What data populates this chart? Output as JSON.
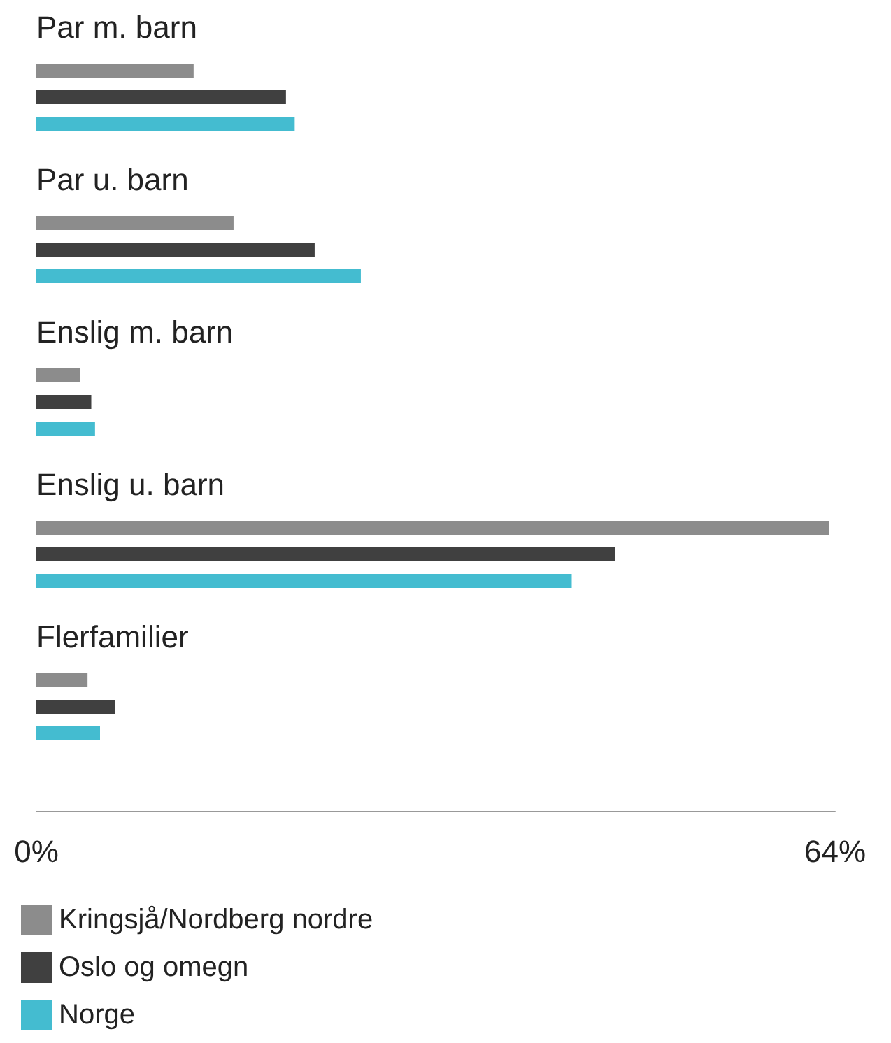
{
  "chart_data": {
    "type": "bar",
    "orientation": "horizontal",
    "categories": [
      "Par m. barn",
      "Par u. barn",
      "Enslig m. barn",
      "Enslig u. barn",
      "Flerfamilier"
    ],
    "series": [
      {
        "name": "Kringsjå/Nordberg nordre",
        "color": "#8c8c8c",
        "values": [
          12.6,
          15.8,
          3.5,
          63.5,
          4.1
        ]
      },
      {
        "name": "Oslo og omegn",
        "color": "#404040",
        "values": [
          20.0,
          22.3,
          4.4,
          46.4,
          6.3
        ]
      },
      {
        "name": "Norge",
        "color": "#44bcd0",
        "values": [
          20.7,
          26.0,
          4.7,
          42.9,
          5.1
        ]
      }
    ],
    "xlim": [
      0,
      64
    ],
    "xticks": [
      {
        "value": 0,
        "label": "0%"
      },
      {
        "value": 64,
        "label": "64%"
      }
    ],
    "grid": false,
    "legend": "bottom left"
  }
}
